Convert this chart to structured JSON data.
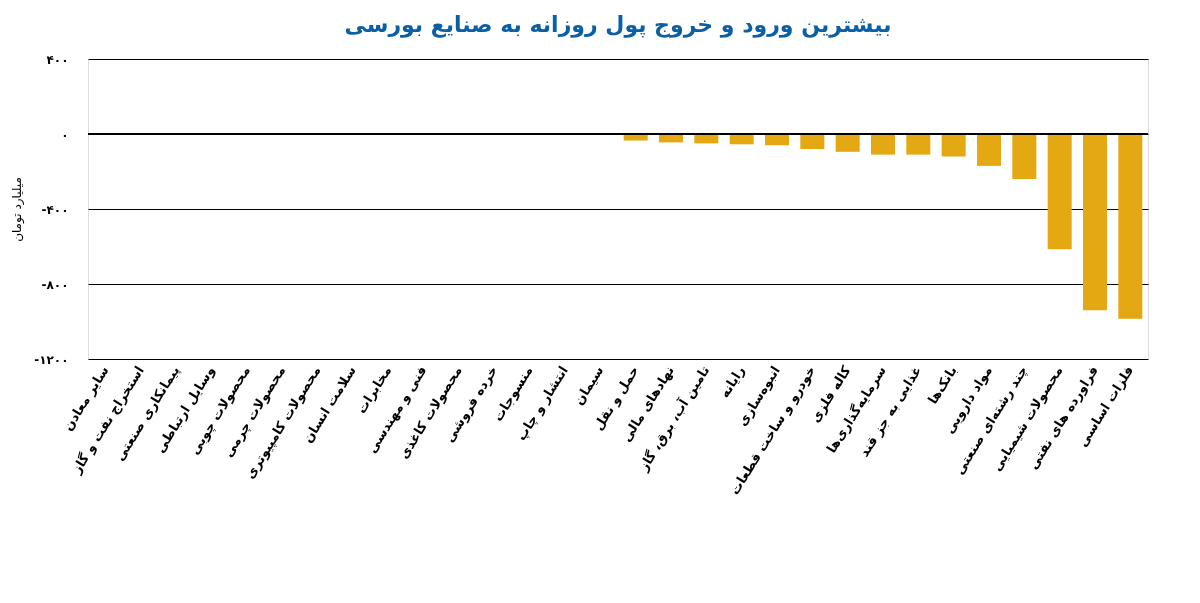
{
  "chart_data": {
    "type": "bar",
    "title": "بیشترین ورود و خروج پول روزانه به صنایع بورسی",
    "ylabel": "میلیارد تومان",
    "categories": [
      "سایر معادن",
      "استخراج نفت و گاز",
      "پیمانکاری صنعتی",
      "وسایل ارتباطی",
      "محصولات چوبی",
      "محصولات چرمی",
      "محصولات کامپیوتری",
      "سلامت انسان",
      "مخابرات",
      "فنی و مهندسی",
      "محصولات کاغذی",
      "خرده فروشی",
      "منسوجات",
      "انتشار و چاپ",
      "سیمان",
      "حمل و نقل",
      "نهادهای مالی",
      "تامین آب، برق، گاز",
      "رایانه",
      "انبوه‌سازی",
      "خودرو و ساخت قطعات",
      "کاله فلزی",
      "سرمایه‌گذاری‌ها",
      "غذایی به جز قند",
      "بانک‌ها",
      "مواد دارویی",
      "چند رشته‌ای صنعتی",
      "محصولات شیمیایی",
      "فراورده های نفتی",
      "فلزات اساسی"
    ],
    "values": [
      0,
      0,
      0,
      0,
      0,
      0,
      0,
      0,
      0,
      0,
      0,
      0,
      0,
      0,
      0,
      -35,
      -45,
      -50,
      -55,
      -60,
      -80,
      -95,
      -110,
      -110,
      -120,
      -170,
      -240,
      -615,
      -940,
      -985
    ],
    "color": "#e3a812",
    "ylim": [
      -1200,
      400
    ],
    "yticks": [
      {
        "value": -1200,
        "label": "-۱۲۰۰"
      },
      {
        "value": -800,
        "label": "-۸۰۰"
      },
      {
        "value": -400,
        "label": "-۴۰۰"
      },
      {
        "value": 0,
        "label": "۰"
      },
      {
        "value": 400,
        "label": "۴۰۰"
      }
    ],
    "grid": "y"
  }
}
